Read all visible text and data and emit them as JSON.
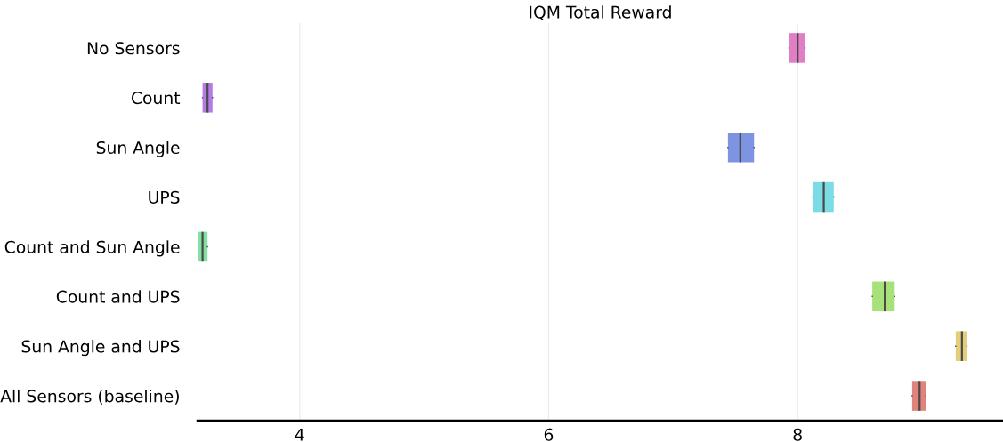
{
  "chart_data": {
    "type": "box",
    "orientation": "horizontal",
    "title": "IQM Total Reward",
    "categories": [
      "No Sensors",
      "Count",
      "Sun Angle",
      "UPS",
      "Count and Sun Angle",
      "Count and UPS",
      "Sun Angle and UPS",
      "All Sensors (baseline)"
    ],
    "boxes": [
      {
        "low": 7.93,
        "q1": 7.93,
        "median": 8.0,
        "q3": 8.06,
        "high": 8.06
      },
      {
        "low": 3.22,
        "q1": 3.22,
        "median": 3.26,
        "q3": 3.3,
        "high": 3.3
      },
      {
        "low": 7.44,
        "q1": 7.44,
        "median": 7.54,
        "q3": 7.65,
        "high": 7.65
      },
      {
        "low": 8.12,
        "q1": 8.12,
        "median": 8.21,
        "q3": 8.29,
        "high": 8.29
      },
      {
        "low": 3.18,
        "q1": 3.18,
        "median": 3.22,
        "q3": 3.26,
        "high": 3.26
      },
      {
        "low": 8.6,
        "q1": 8.6,
        "median": 8.7,
        "q3": 8.78,
        "high": 8.78
      },
      {
        "low": 9.27,
        "q1": 9.27,
        "median": 9.32,
        "q3": 9.36,
        "high": 9.36
      },
      {
        "low": 8.92,
        "q1": 8.92,
        "median": 8.98,
        "q3": 9.03,
        "high": 9.03
      }
    ],
    "colors": [
      "#e07fc6",
      "#b47be6",
      "#7f93e3",
      "#7bdce5",
      "#82e0a0",
      "#a8e07a",
      "#e3cf7b",
      "#e0837c"
    ],
    "xlim": [
      3.18,
      9.65
    ],
    "xticks": [
      4,
      6,
      8
    ],
    "grid": "x"
  }
}
